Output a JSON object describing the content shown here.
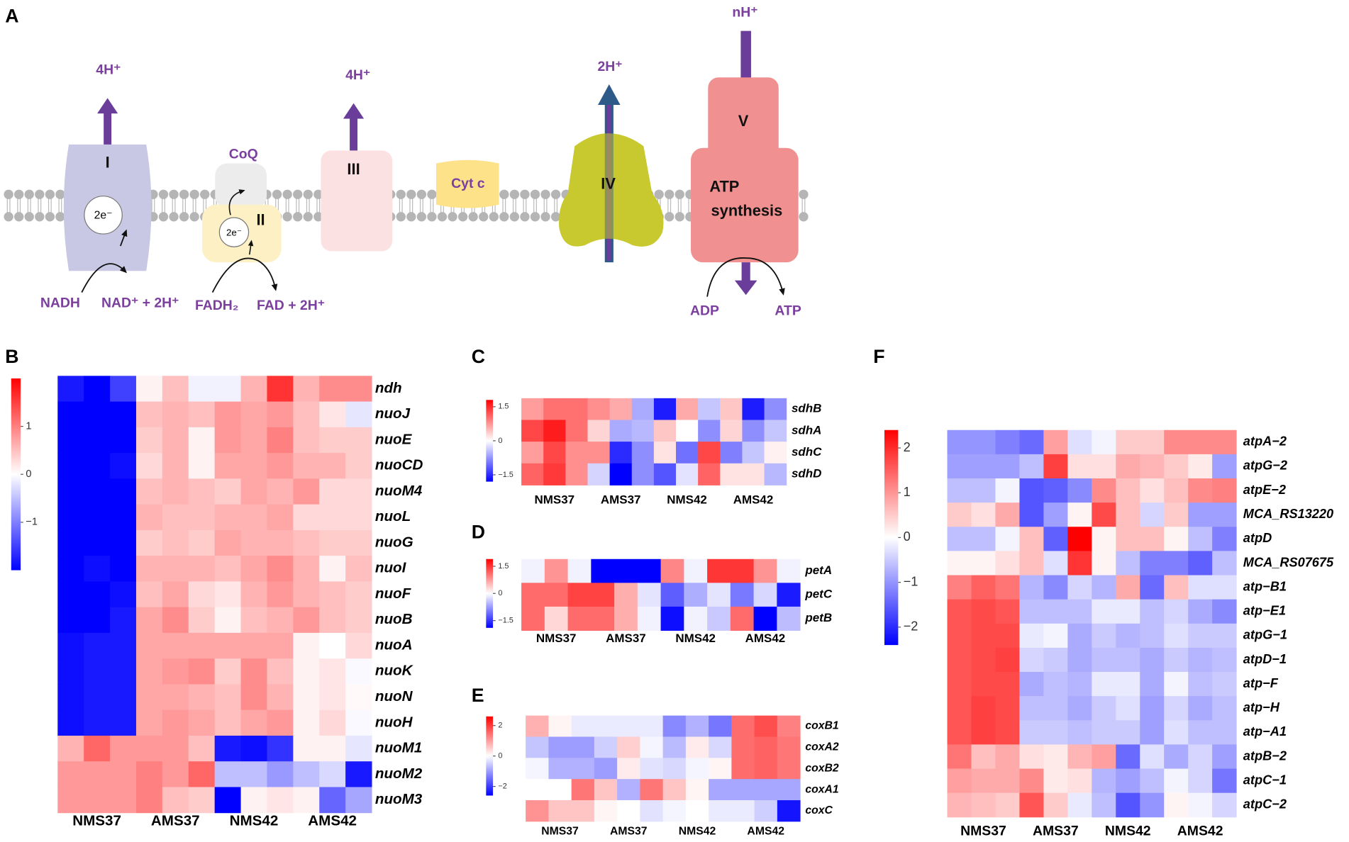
{
  "diagram": {
    "label": "A",
    "protons_I": "4H⁺",
    "complex_I": "I",
    "electrons_I": "2e⁻",
    "nadh": "NADH",
    "nad": "NAD⁺ + 2H⁺",
    "coq": "CoQ",
    "complex_II": "II",
    "electrons_II": "2e⁻",
    "fadh2": "FADH₂",
    "fad": "FAD + 2H⁺",
    "protons_III": "4H⁺",
    "complex_III": "III",
    "cyt_c": "Cyt c",
    "protons_IV": "2H⁺",
    "complex_IV": "IV",
    "protons_V": "nH⁺",
    "complex_V": "V",
    "atp_synthesis_1": "ATP",
    "atp_synthesis_2": "synthesis",
    "adp": "ADP",
    "atp": "ATP"
  },
  "chart_data": [
    {
      "type": "heatmap",
      "label": "B",
      "x_groups": [
        "NMS37",
        "AMS37",
        "NMS42",
        "AMS42"
      ],
      "colors": [
        "#0000ff",
        "#ffffff",
        "#ff0000"
      ],
      "zlim": [
        -2,
        2
      ],
      "zticks": [
        1,
        0,
        {
          "value": -1,
          "label": "−1"
        }
      ],
      "rows": [
        "ndh",
        "nuoJ",
        "nuoE",
        "nuoCD",
        "nuoM4",
        "nuoL",
        "nuoG",
        "nuoI",
        "nuoF",
        "nuoB",
        "nuoA",
        "nuoK",
        "nuoN",
        "nuoH",
        "nuoM1",
        "nuoM2",
        "nuoM3"
      ],
      "values": [
        [
          -1.8,
          -2,
          -1.5,
          0.1,
          0.5,
          -0.1,
          -0.1,
          0.6,
          1.6,
          0.6,
          0.9,
          0.9
        ],
        [
          -2,
          -2,
          -2,
          0.5,
          0.6,
          0.5,
          0.8,
          0.7,
          0.8,
          0.5,
          0.2,
          -0.2
        ],
        [
          -2,
          -2,
          -2,
          0.4,
          0.6,
          0.1,
          0.8,
          0.7,
          1.0,
          0.5,
          0.4,
          0.4
        ],
        [
          -2,
          -2,
          -1.9,
          0.3,
          0.6,
          0.1,
          0.7,
          0.7,
          0.8,
          0.6,
          0.6,
          0.4
        ],
        [
          -2,
          -2,
          -2,
          0.5,
          0.6,
          0.5,
          0.4,
          0.7,
          0.6,
          0.8,
          0.3,
          0.3
        ],
        [
          -2,
          -2,
          -2,
          0.6,
          0.5,
          0.5,
          0.6,
          0.6,
          0.7,
          0.3,
          0.3,
          0.3
        ],
        [
          -2,
          -2,
          -2,
          0.4,
          0.5,
          0.4,
          0.7,
          0.6,
          0.6,
          0.5,
          0.4,
          0.4
        ],
        [
          -2,
          -1.9,
          -2,
          0.6,
          0.6,
          0.6,
          0.5,
          0.7,
          0.9,
          0.6,
          0.1,
          0.5
        ],
        [
          -2,
          -2,
          -1.9,
          0.5,
          0.7,
          0.3,
          0.2,
          0.6,
          0.8,
          0.6,
          0.5,
          0.4
        ],
        [
          -2,
          -2,
          -1.8,
          0.7,
          0.9,
          0.4,
          0.1,
          0.5,
          0.6,
          0.8,
          0.5,
          0.4
        ],
        [
          -1.9,
          -1.8,
          -1.8,
          0.7,
          0.7,
          0.7,
          0.7,
          0.7,
          0.7,
          0.1,
          0,
          0.3
        ],
        [
          -1.9,
          -1.8,
          -1.8,
          0.7,
          0.8,
          0.9,
          0.4,
          0.9,
          0.5,
          0.1,
          0.2,
          -0.05
        ],
        [
          -1.9,
          -1.8,
          -1.8,
          0.7,
          0.7,
          0.6,
          0.5,
          0.9,
          0.6,
          0.1,
          0.2,
          0.05
        ],
        [
          -1.9,
          -1.8,
          -1.8,
          0.7,
          0.8,
          0.7,
          0.5,
          0.7,
          0.8,
          0.1,
          0.3,
          -0.05
        ],
        [
          0.6,
          1.2,
          0.8,
          0.8,
          0.8,
          0.5,
          -1.8,
          -1.9,
          -1.6,
          0.1,
          0.1,
          -0.2
        ],
        [
          0.8,
          0.8,
          0.8,
          1.0,
          0.8,
          1.2,
          -0.5,
          -0.5,
          -0.8,
          -0.5,
          -0.3,
          -1.8
        ],
        [
          0.8,
          0.8,
          0.8,
          1.0,
          0.5,
          0.4,
          -2,
          0.1,
          0.2,
          0.1,
          -1.2,
          -0.7
        ]
      ]
    },
    {
      "type": "heatmap",
      "label": "C",
      "x_groups": [
        "NMS37",
        "AMS37",
        "NMS42",
        "AMS42"
      ],
      "colors": [
        "#0000ff",
        "#ffffff",
        "#ff0000"
      ],
      "zlim": [
        -1.8,
        1.8
      ],
      "zticks": [
        1.5,
        0,
        {
          "value": -1.5,
          "label": "−1.5"
        }
      ],
      "rows": [
        "sdhB",
        "sdhA",
        "sdhC",
        "sdhD"
      ],
      "values": [
        [
          0.7,
          1.0,
          1.0,
          0.8,
          0.6,
          -0.6,
          -1.6,
          0.6,
          -0.4,
          0.4,
          -1.6,
          -0.8
        ],
        [
          1.3,
          1.6,
          1.0,
          0.3,
          -0.6,
          -0.5,
          0.4,
          0.0,
          -0.8,
          0.3,
          -0.8,
          -0.4
        ],
        [
          0.7,
          1.3,
          0.8,
          0.8,
          -1.5,
          -0.8,
          0.2,
          -1.0,
          1.3,
          -0.9,
          -0.4,
          0.1
        ],
        [
          1.1,
          1.4,
          0.8,
          -0.3,
          -1.8,
          -0.8,
          -1.2,
          -0.2,
          1.1,
          0.2,
          0.2,
          -0.5
        ]
      ]
    },
    {
      "type": "heatmap",
      "label": "D",
      "x_groups": [
        "NMS37",
        "AMS37",
        "NMS42",
        "AMS42"
      ],
      "colors": [
        "#0000ff",
        "#ffffff",
        "#ff0000"
      ],
      "zlim": [
        -1.9,
        1.9
      ],
      "zticks": [
        1.5,
        0,
        {
          "value": -1.5,
          "label": "−1.5"
        }
      ],
      "rows": [
        "petA",
        "petC",
        "petB"
      ],
      "values": [
        [
          -0.1,
          0.8,
          -0.1,
          -1.9,
          -1.9,
          -1.9,
          0.9,
          -0.1,
          1.5,
          1.5,
          0.8,
          -0.1
        ],
        [
          1.1,
          1.1,
          1.4,
          1.4,
          0.6,
          -0.2,
          -1.2,
          -0.6,
          -0.2,
          -1.0,
          -0.3,
          -1.7
        ],
        [
          1.1,
          0.3,
          1.1,
          1.1,
          0.6,
          -0.1,
          -1.8,
          -0.1,
          -0.4,
          1.1,
          -1.9,
          -0.5
        ]
      ]
    },
    {
      "type": "heatmap",
      "label": "E",
      "x_groups": [
        "NMS37",
        "AMS37",
        "NMS42",
        "AMS42"
      ],
      "colors": [
        "#0000ff",
        "#ffffff",
        "#ff0000"
      ],
      "zlim": [
        -2.6,
        2.6
      ],
      "zticks": [
        2,
        0,
        {
          "value": -2,
          "label": "−2"
        }
      ],
      "rows": [
        "coxB1",
        "coxA2",
        "coxB2",
        "coxA1",
        "coxC"
      ],
      "values": [
        [
          0.8,
          0.1,
          -0.2,
          -0.2,
          -0.2,
          -0.2,
          -1.2,
          -0.8,
          -1.4,
          1.5,
          1.8,
          1.3
        ],
        [
          -0.6,
          -1.0,
          -1.0,
          -0.5,
          0.5,
          -0.1,
          -0.7,
          0.2,
          -0.4,
          1.5,
          1.6,
          1.4
        ],
        [
          -0.1,
          -0.8,
          -0.8,
          -1.0,
          0.2,
          -0.3,
          -0.4,
          -0.1,
          0.1,
          1.5,
          1.6,
          1.4
        ],
        [
          0,
          0,
          1.4,
          0.6,
          -0.8,
          1.4,
          0.6,
          0.1,
          -0.9,
          -0.9,
          -0.9,
          -0.9
        ],
        [
          1.1,
          0.6,
          0.6,
          0.1,
          0,
          -0.3,
          -0.1,
          0,
          -0.2,
          -0.2,
          -0.5,
          -2.4
        ]
      ]
    },
    {
      "type": "heatmap",
      "label": "F",
      "x_groups": [
        "NMS37",
        "AMS37",
        "NMS42",
        "AMS42"
      ],
      "colors": [
        "#0000ff",
        "#ffffff",
        "#ff0000"
      ],
      "zlim": [
        -2.4,
        2.4
      ],
      "zticks": [
        2,
        1,
        0,
        {
          "value": -1,
          "label": "−1"
        },
        {
          "value": -2,
          "label": "−2"
        }
      ],
      "rows": [
        "atpA−2",
        "atpG−2",
        "atpE−2",
        "MCA_RS13220",
        "atpD",
        "MCA_RS07675",
        "atp−B1",
        "atp−E1",
        "atpG−1",
        "atpD−1",
        "atp−F",
        "atp−H",
        "atp−A1",
        "atpB−2",
        "atpC−1",
        "atpC−2"
      ],
      "values": [
        [
          -1,
          -1,
          -1.2,
          -1.4,
          0.9,
          -0.3,
          -0.1,
          0.5,
          0.5,
          1.1,
          1.1,
          1.1
        ],
        [
          -0.9,
          -0.9,
          -0.9,
          -0.6,
          1.8,
          0.3,
          0.3,
          0.8,
          0.7,
          0.5,
          0.2,
          -0.9
        ],
        [
          -0.6,
          -0.6,
          -0.1,
          -1.6,
          -1.5,
          -1.1,
          1.1,
          0.6,
          0.3,
          0.6,
          1.1,
          1.2
        ],
        [
          0.5,
          0.3,
          0.8,
          -1.6,
          -0.9,
          0.1,
          1.7,
          0.6,
          -0.4,
          0.5,
          -0.9,
          -0.9
        ],
        [
          -0.6,
          -0.6,
          -0.1,
          0.6,
          -1.5,
          2.4,
          0.1,
          0.6,
          0.6,
          0.1,
          -0.6,
          -1.2
        ],
        [
          0.1,
          0.1,
          0.3,
          0.6,
          -0.3,
          1.9,
          0.1,
          -0.6,
          -1.2,
          -1.2,
          -1.5,
          -0.6
        ],
        [
          1.2,
          1.5,
          1.3,
          -0.7,
          -1.1,
          -0.4,
          -0.7,
          0.8,
          -1.4,
          0.6,
          -0.3,
          -0.3
        ],
        [
          1.6,
          1.7,
          1.6,
          -0.6,
          -0.6,
          -0.6,
          -0.2,
          -0.2,
          -0.6,
          -0.4,
          -0.8,
          -1.1
        ],
        [
          1.6,
          1.7,
          1.7,
          -0.2,
          -0.1,
          -0.8,
          -0.5,
          -0.7,
          -0.6,
          -0.3,
          -0.5,
          -0.5
        ],
        [
          1.6,
          1.7,
          1.8,
          -0.4,
          -0.5,
          -0.8,
          -0.6,
          -0.6,
          -0.8,
          -0.5,
          -0.7,
          -0.6
        ],
        [
          1.6,
          1.7,
          1.7,
          -0.8,
          -0.6,
          -0.7,
          -0.2,
          -0.2,
          -0.8,
          -0.1,
          -0.6,
          -0.5
        ],
        [
          1.6,
          1.8,
          1.7,
          -0.6,
          -0.6,
          -0.8,
          -0.5,
          -0.3,
          -0.9,
          -0.4,
          -0.8,
          -0.6
        ],
        [
          1.6,
          1.8,
          1.7,
          -0.5,
          -0.5,
          -0.6,
          -0.5,
          -0.5,
          -0.9,
          -0.3,
          -0.6,
          -0.6
        ],
        [
          1.3,
          0.6,
          0.8,
          0.3,
          0.2,
          0.7,
          0.9,
          -1.4,
          -0.3,
          -0.8,
          -0.4,
          -0.9
        ],
        [
          0.9,
          0.8,
          0.8,
          1.1,
          0.2,
          0.3,
          -0.7,
          -0.9,
          -0.6,
          -0.1,
          -0.4,
          -1.3
        ],
        [
          0.7,
          0.6,
          0.5,
          1.6,
          0.5,
          -0.2,
          -0.6,
          -1.6,
          -1.0,
          0.1,
          -0.1,
          -0.4
        ]
      ]
    }
  ]
}
